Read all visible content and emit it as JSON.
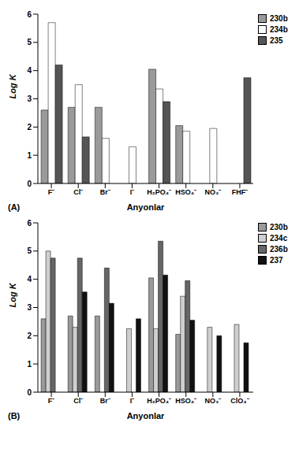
{
  "chart_data": [
    {
      "type": "bar",
      "title": "(A)",
      "x_label": "Anyonlar",
      "y_label": "Log K",
      "categories": [
        "F⁻",
        "Cl⁻",
        "Br⁻",
        "I⁻",
        "H₂PO₄⁻",
        "HSO₄⁻",
        "NO₃⁻",
        "FHF⁻"
      ],
      "series": [
        {
          "name": "230b",
          "color": "#9a9a9a",
          "values": [
            2.6,
            2.7,
            2.7,
            null,
            4.05,
            2.05,
            null,
            null
          ]
        },
        {
          "name": "234b",
          "color": "#ffffff",
          "values": [
            5.7,
            3.5,
            1.6,
            1.3,
            3.35,
            1.85,
            1.95,
            null
          ]
        },
        {
          "name": "235",
          "color": "#555555",
          "values": [
            4.2,
            1.65,
            null,
            null,
            2.9,
            null,
            null,
            3.75
          ]
        }
      ],
      "ylim": [
        0,
        6
      ],
      "yticks": [
        0,
        1,
        2,
        3,
        4,
        5,
        6
      ],
      "grid": false,
      "legend": "top-right"
    },
    {
      "type": "bar",
      "title": "(B)",
      "x_label": "Anyonlar",
      "y_label": "Log K",
      "categories": [
        "F⁻",
        "Cl⁻",
        "Br⁻",
        "I⁻",
        "H₂PO₄⁻",
        "HSO₄⁻",
        "NO₃⁻",
        "ClO₄⁻"
      ],
      "series": [
        {
          "name": "230b",
          "color": "#9a9a9a",
          "values": [
            2.6,
            2.7,
            2.7,
            null,
            4.05,
            2.05,
            null,
            null
          ]
        },
        {
          "name": "234c",
          "color": "#cfcfcf",
          "values": [
            5.0,
            2.3,
            null,
            2.25,
            2.25,
            3.4,
            2.3,
            2.4
          ]
        },
        {
          "name": "236b",
          "color": "#666666",
          "values": [
            4.75,
            4.75,
            4.4,
            null,
            5.35,
            3.95,
            null,
            null
          ]
        },
        {
          "name": "237",
          "color": "#111111",
          "values": [
            null,
            3.55,
            3.15,
            2.6,
            4.15,
            2.55,
            2.0,
            1.75
          ]
        }
      ],
      "ylim": [
        0,
        6
      ],
      "yticks": [
        0,
        1,
        2,
        3,
        4,
        5,
        6
      ],
      "grid": false,
      "legend": "top-right"
    }
  ]
}
